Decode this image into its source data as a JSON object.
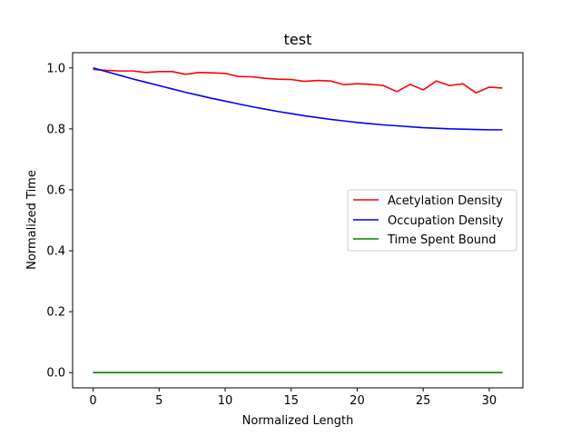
{
  "chart_data": {
    "type": "line",
    "title": "test",
    "xlabel": "Normalized Length",
    "ylabel": "Normalized Time",
    "xlim": [
      -1.55,
      32.55
    ],
    "ylim": [
      -0.05,
      1.05
    ],
    "xticks": [
      0,
      5,
      10,
      15,
      20,
      25,
      30
    ],
    "yticks": [
      0.0,
      0.2,
      0.4,
      0.6,
      0.8,
      1.0
    ],
    "xtick_labels": [
      "0",
      "5",
      "10",
      "15",
      "20",
      "25",
      "30"
    ],
    "ytick_labels": [
      "0.0",
      "0.2",
      "0.4",
      "0.6",
      "0.8",
      "1.0"
    ],
    "grid": false,
    "legend_position": "center-right",
    "x": [
      0,
      1,
      2,
      3,
      4,
      5,
      6,
      7,
      8,
      9,
      10,
      11,
      12,
      13,
      14,
      15,
      16,
      17,
      18,
      19,
      20,
      21,
      22,
      23,
      24,
      25,
      26,
      27,
      28,
      29,
      30,
      31
    ],
    "series": [
      {
        "name": "Acetylation Density",
        "color": "#ff0000",
        "values": [
          0.995,
          0.992,
          0.99,
          0.99,
          0.985,
          0.988,
          0.988,
          0.979,
          0.985,
          0.984,
          0.982,
          0.972,
          0.971,
          0.966,
          0.963,
          0.962,
          0.956,
          0.959,
          0.957,
          0.945,
          0.948,
          0.946,
          0.942,
          0.922,
          0.946,
          0.928,
          0.957,
          0.942,
          0.948,
          0.918,
          0.937,
          0.934
        ]
      },
      {
        "name": "Occupation Density",
        "color": "#0000ff",
        "values": [
          1.0,
          0.988,
          0.976,
          0.964,
          0.953,
          0.942,
          0.931,
          0.92,
          0.91,
          0.9,
          0.891,
          0.882,
          0.873,
          0.865,
          0.857,
          0.85,
          0.843,
          0.837,
          0.831,
          0.826,
          0.821,
          0.817,
          0.813,
          0.81,
          0.807,
          0.804,
          0.802,
          0.8,
          0.799,
          0.798,
          0.797,
          0.797
        ]
      },
      {
        "name": "Time Spent Bound",
        "color": "#008000",
        "values": [
          0,
          0,
          0,
          0,
          0,
          0,
          0,
          0,
          0,
          0,
          0,
          0,
          0,
          0,
          0,
          0,
          0,
          0,
          0,
          0,
          0,
          0,
          0,
          0,
          0,
          0,
          0,
          0,
          0,
          0,
          0,
          0
        ]
      }
    ]
  }
}
